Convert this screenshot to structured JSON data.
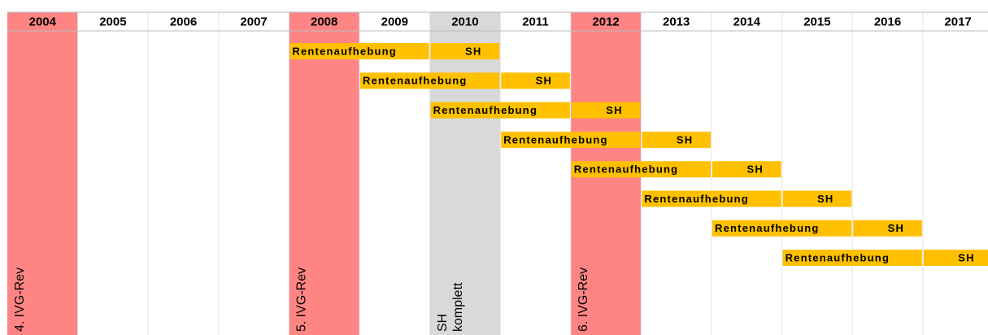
{
  "timeline": {
    "years": [
      "2004",
      "2005",
      "2006",
      "2007",
      "2008",
      "2009",
      "2010",
      "2011",
      "2012",
      "2013",
      "2014",
      "2015",
      "2016",
      "2017"
    ],
    "highlights": [
      {
        "year": "2004",
        "color": "#ff8585",
        "lines": [
          "4. IVG-Rev"
        ]
      },
      {
        "year": "2008",
        "color": "#ff8585",
        "lines": [
          "5. IVG-Rev"
        ]
      },
      {
        "year": "2010",
        "color": "#d9d9d9",
        "lines": [
          "SH",
          "komplett"
        ]
      },
      {
        "year": "2012",
        "color": "#ff8585",
        "lines": [
          "6. IVG-Rev"
        ]
      }
    ],
    "bar_color": "#ffc000",
    "rows": [
      {
        "phases": [
          {
            "label": "Rentenaufhebung",
            "from": "2008",
            "to": "2009"
          },
          {
            "label": "SH",
            "from": "2010",
            "to": "2010"
          }
        ]
      },
      {
        "phases": [
          {
            "label": "Rentenaufhebung",
            "from": "2009",
            "to": "2010"
          },
          {
            "label": "SH",
            "from": "2011",
            "to": "2011"
          }
        ]
      },
      {
        "phases": [
          {
            "label": "Rentenaufhebung",
            "from": "2010",
            "to": "2011"
          },
          {
            "label": "SH",
            "from": "2012",
            "to": "2012"
          }
        ]
      },
      {
        "phases": [
          {
            "label": "Rentenaufhebung",
            "from": "2011",
            "to": "2012"
          },
          {
            "label": "SH",
            "from": "2013",
            "to": "2013"
          }
        ]
      },
      {
        "phases": [
          {
            "label": "Rentenaufhebung",
            "from": "2012",
            "to": "2013"
          },
          {
            "label": "SH",
            "from": "2014",
            "to": "2014"
          }
        ]
      },
      {
        "phases": [
          {
            "label": "Rentenaufhebung",
            "from": "2013",
            "to": "2014"
          },
          {
            "label": "SH",
            "from": "2015",
            "to": "2015"
          }
        ]
      },
      {
        "phases": [
          {
            "label": "Rentenaufhebung",
            "from": "2014",
            "to": "2015"
          },
          {
            "label": "SH",
            "from": "2016",
            "to": "2016"
          }
        ]
      },
      {
        "phases": [
          {
            "label": "Rentenaufhebung",
            "from": "2015",
            "to": "2016"
          },
          {
            "label": "SH",
            "from": "2017",
            "to": "2017"
          }
        ]
      }
    ]
  }
}
